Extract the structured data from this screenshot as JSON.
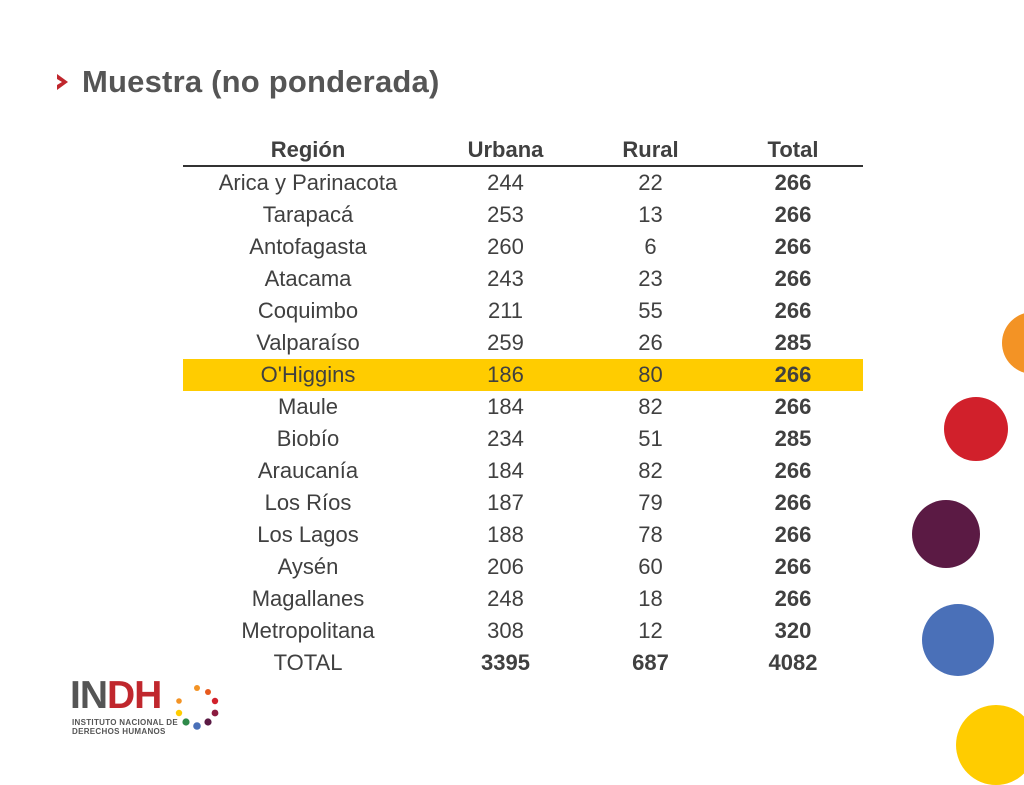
{
  "title": "Muestra (no ponderada)",
  "table": {
    "headers": [
      "Región",
      "Urbana",
      "Rural",
      "Total"
    ],
    "rows": [
      [
        "Arica y Parinacota",
        "244",
        "22",
        "266"
      ],
      [
        "Tarapacá",
        "253",
        "13",
        "266"
      ],
      [
        "Antofagasta",
        "260",
        "6",
        "266"
      ],
      [
        "Atacama",
        "243",
        "23",
        "266"
      ],
      [
        "Coquimbo",
        "211",
        "55",
        "266"
      ],
      [
        "Valparaíso",
        "259",
        "26",
        "285"
      ],
      [
        "O'Higgins",
        "186",
        "80",
        "266"
      ],
      [
        "Maule",
        "184",
        "82",
        "266"
      ],
      [
        "Biobío",
        "234",
        "51",
        "285"
      ],
      [
        "Araucanía",
        "184",
        "82",
        "266"
      ],
      [
        "Los Ríos",
        "187",
        "79",
        "266"
      ],
      [
        "Los Lagos",
        "188",
        "78",
        "266"
      ],
      [
        "Aysén",
        "206",
        "60",
        "266"
      ],
      [
        "Magallanes",
        "248",
        "18",
        "266"
      ],
      [
        "Metropolitana",
        "308",
        "12",
        "320"
      ]
    ],
    "total_row": [
      "TOTAL",
      "3395",
      "687",
      "4082"
    ],
    "highlighted_region": "O'Higgins",
    "highlight_color": "#ffcc00"
  },
  "logo": {
    "name": "INDH",
    "name_part1": "IN",
    "name_part2": "DH",
    "line1": "INSTITUTO NACIONAL DE",
    "line2": "DERECHOS HUMANOS"
  },
  "colors": {
    "title": "#555555",
    "accent_red": "#c0272d",
    "dot_orange": "#f39325",
    "dot_red": "#d1202b",
    "dot_purple": "#5b1a44",
    "dot_blue": "#4a70b8",
    "dot_yellow": "#ffcc00"
  }
}
